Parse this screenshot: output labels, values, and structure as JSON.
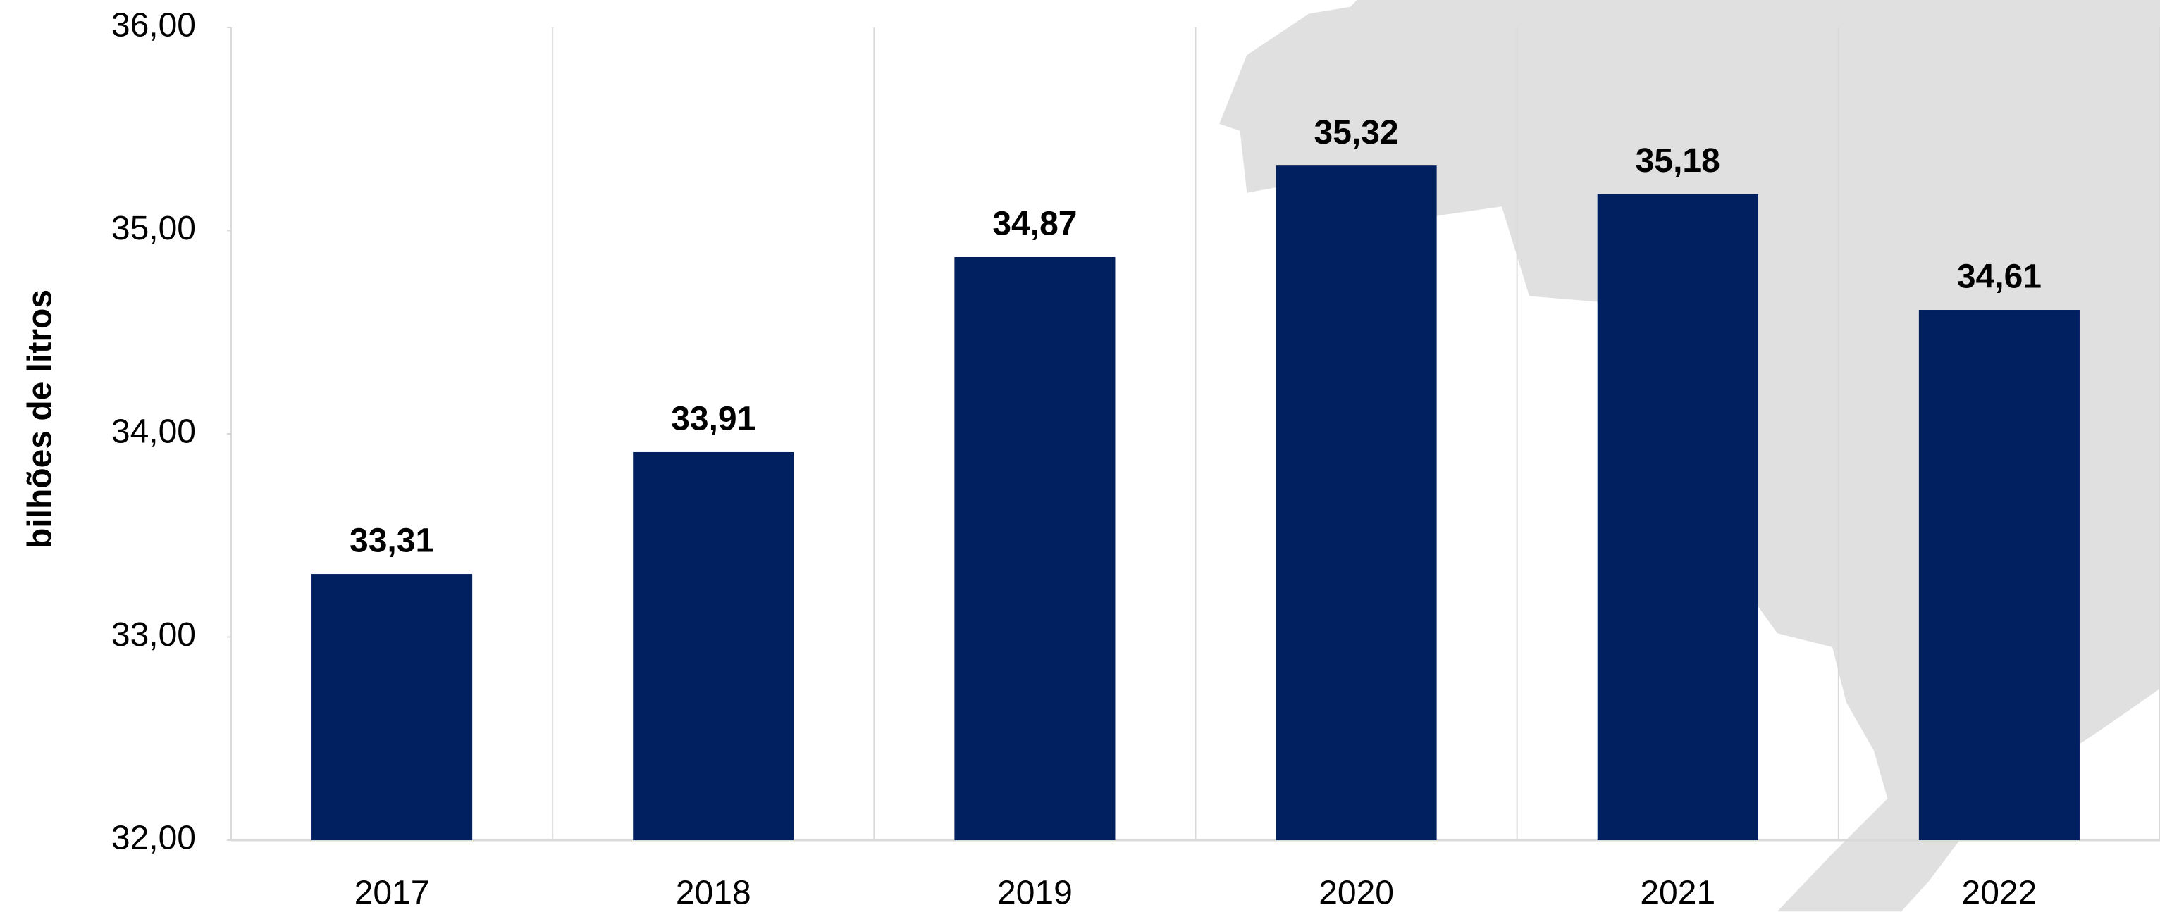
{
  "chart_data": {
    "type": "bar",
    "y_axis_title": "bilhões de litros",
    "categories": [
      "2017",
      "2018",
      "2019",
      "2020",
      "2021",
      "2022"
    ],
    "values": [
      33.31,
      33.91,
      34.87,
      35.32,
      35.18,
      34.61
    ],
    "value_labels": [
      "33,31",
      "33,91",
      "34,87",
      "35,32",
      "35,18",
      "34,61"
    ],
    "color": "#002060",
    "ylim": [
      32,
      36
    ],
    "yticks": [
      {
        "value": 32,
        "label": "32,00"
      },
      {
        "value": 33,
        "label": "33,00"
      },
      {
        "value": 34,
        "label": "34,00"
      },
      {
        "value": 35,
        "label": "35,00"
      },
      {
        "value": 36,
        "label": "36,00"
      }
    ]
  }
}
